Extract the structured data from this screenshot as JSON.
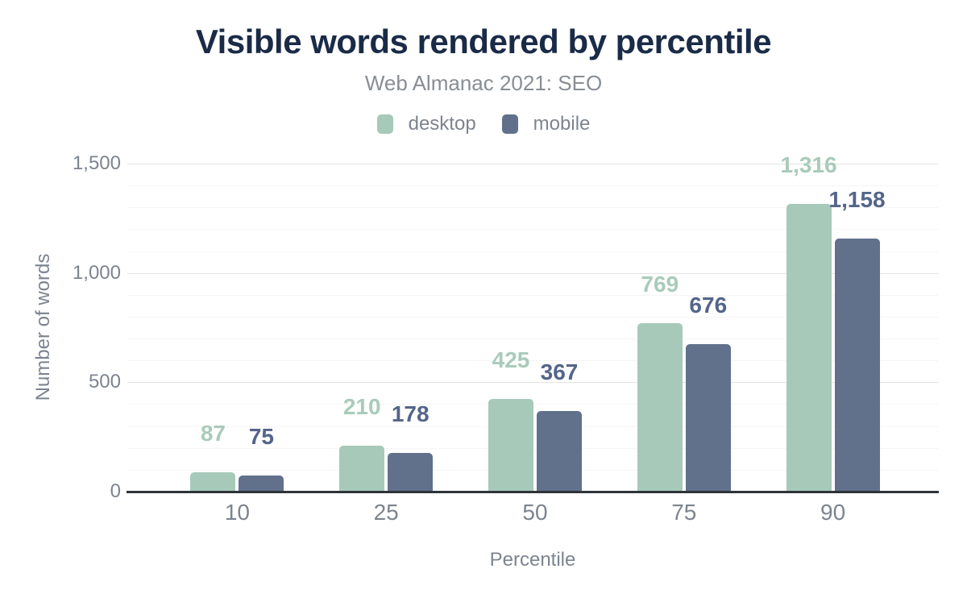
{
  "chart_data": {
    "type": "bar",
    "title": "Visible words rendered by percentile",
    "subtitle": "Web Almanac 2021: SEO",
    "xlabel": "Percentile",
    "ylabel": "Number of words",
    "categories": [
      "10",
      "25",
      "50",
      "75",
      "90"
    ],
    "series": [
      {
        "name": "desktop",
        "values": [
          87,
          210,
          425,
          769,
          1316
        ],
        "labels": [
          "87",
          "210",
          "425",
          "769",
          "1,316"
        ],
        "color": "#a7c9ba",
        "label_color": "#a9cbba"
      },
      {
        "name": "mobile",
        "values": [
          75,
          178,
          367,
          676,
          1158
        ],
        "labels": [
          "75",
          "178",
          "367",
          "676",
          "1,158"
        ],
        "color": "#61718c",
        "label_color": "#54658a"
      }
    ],
    "ylim": [
      0,
      1500
    ],
    "yticks": [
      {
        "value": 0,
        "label": "0"
      },
      {
        "value": 500,
        "label": "500"
      },
      {
        "value": 1000,
        "label": "1,000"
      },
      {
        "value": 1500,
        "label": "1,500"
      }
    ],
    "grid": {
      "show": true,
      "minor_step": 100,
      "major_step": 500
    },
    "legend_position": "top"
  },
  "colors": {
    "title": "#1a2b47",
    "subtitle": "#888e95",
    "axis_text": "#7d8490",
    "grid_minor": "#f5f5f5",
    "grid_major": "#e3e3e3",
    "baseline": "#2f3338",
    "background": "#ffffff"
  }
}
